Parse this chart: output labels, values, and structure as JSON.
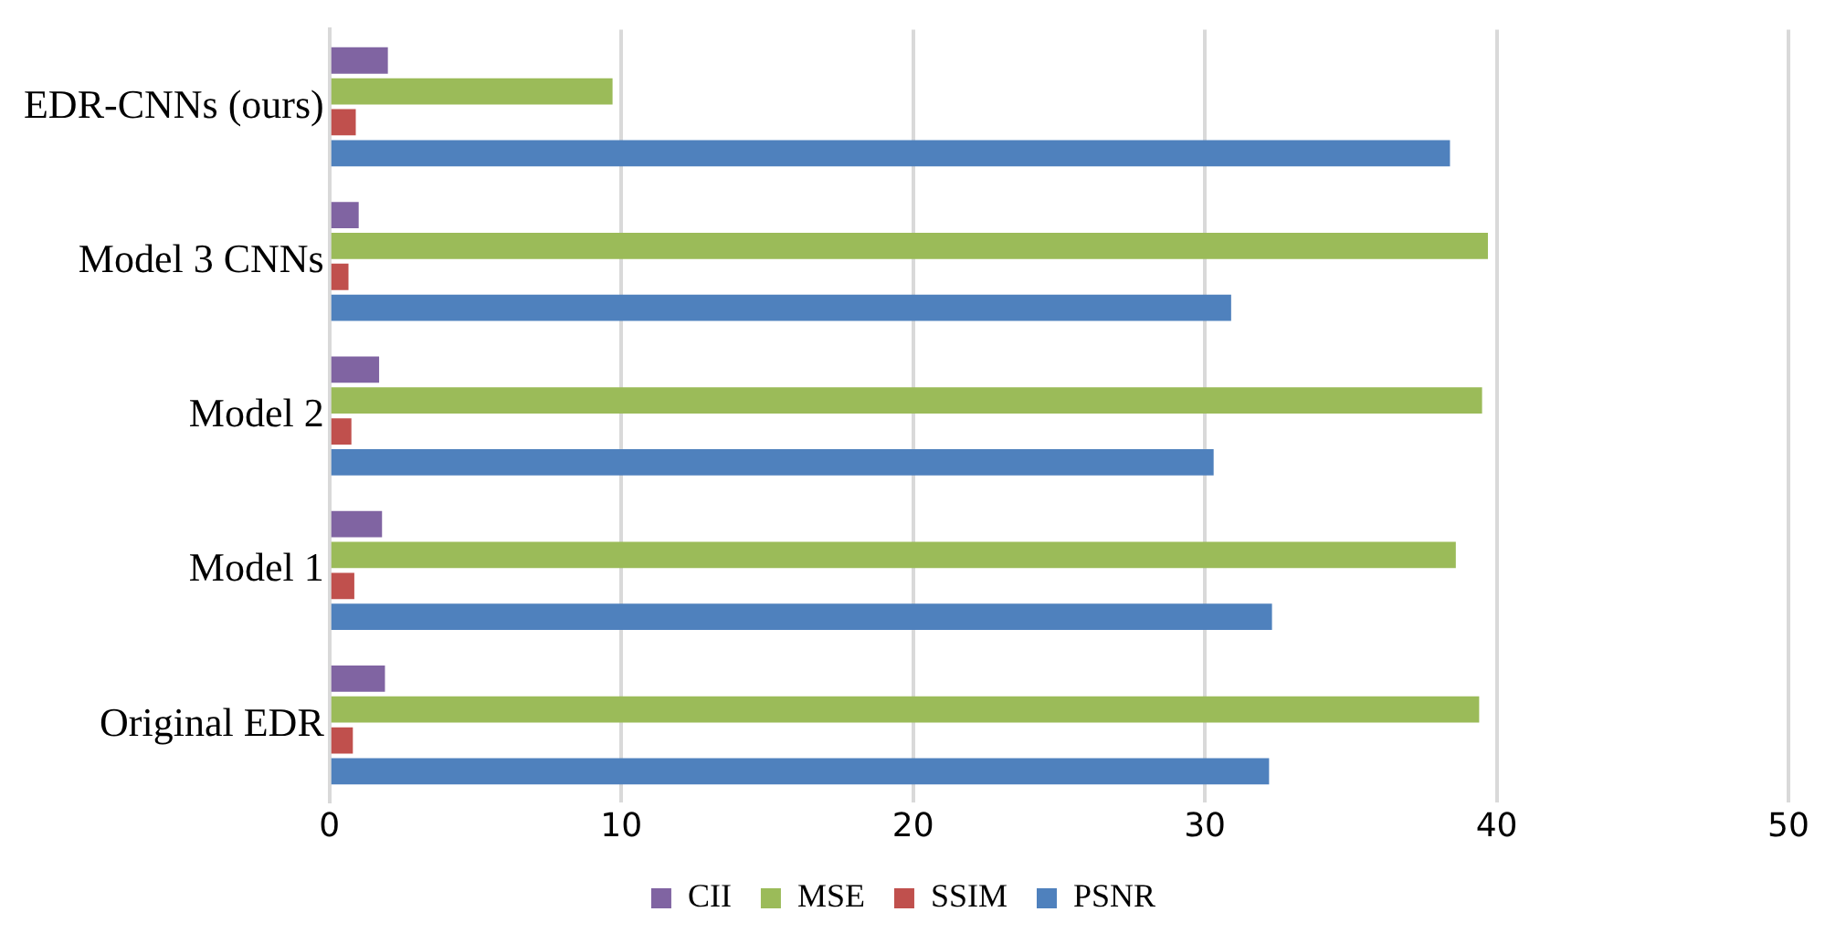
{
  "chart_data": {
    "type": "bar",
    "orientation": "horizontal",
    "categories": [
      "EDR-CNNs (ours)",
      "Model 3 CNNs",
      "Model 2",
      "Model 1",
      "Original EDR"
    ],
    "series": [
      {
        "name": "CII",
        "color": "#8064a2",
        "values": [
          2.0,
          1.0,
          1.7,
          1.8,
          1.9
        ]
      },
      {
        "name": "MSE",
        "color": "#9bbb59",
        "values": [
          9.7,
          39.7,
          39.5,
          38.6,
          39.4
        ]
      },
      {
        "name": "SSIM",
        "color": "#c0504d",
        "values": [
          0.9,
          0.65,
          0.75,
          0.85,
          0.8
        ]
      },
      {
        "name": "PSNR",
        "color": "#4f81bd",
        "values": [
          38.4,
          30.9,
          30.3,
          32.3,
          32.2
        ]
      }
    ],
    "xlim": [
      0,
      50
    ],
    "xticks": [
      0,
      10,
      20,
      30,
      40,
      50
    ],
    "grid": "x",
    "legend": "bottom"
  }
}
